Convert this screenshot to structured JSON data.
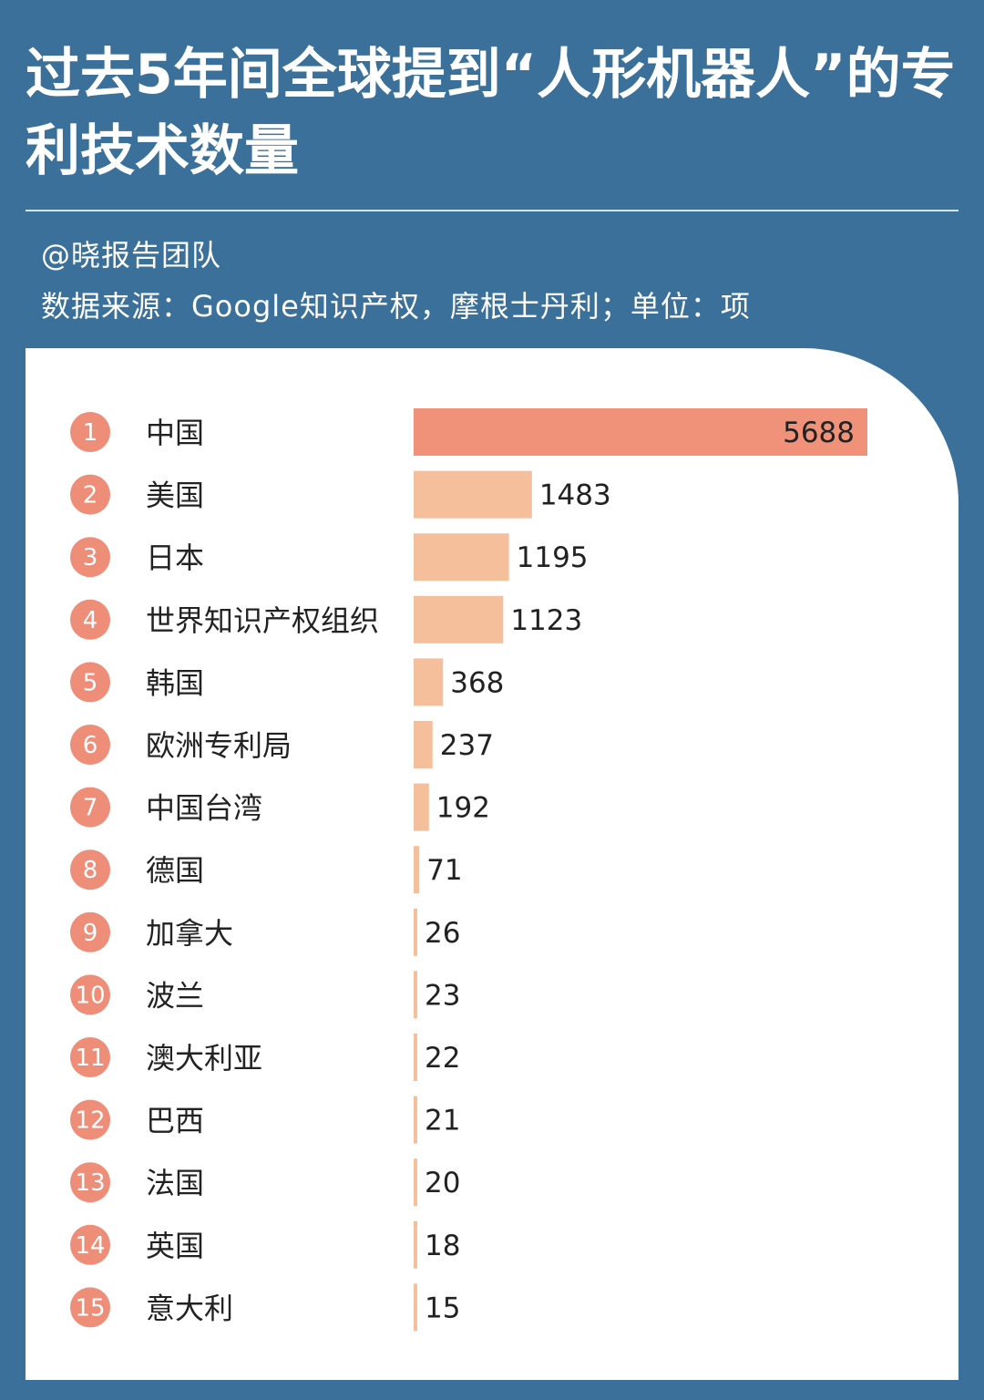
{
  "header": {
    "title": "过去5年间全球提到“人形机器人”的专利技术数量",
    "credit": "@晓报告团队",
    "source": "数据来源：Google知识产权，摩根士丹利；单位：项"
  },
  "colors": {
    "background": "#3a7099",
    "panel": "#ffffff",
    "top_bar": "#f0927a",
    "other_bars": "#f6bf9b",
    "rank_circle": "#ee8d78"
  },
  "chart_data": {
    "type": "bar",
    "orientation": "horizontal",
    "ranks": [
      "1",
      "2",
      "3",
      "4",
      "5",
      "6",
      "7",
      "8",
      "9",
      "10",
      "11",
      "12",
      "13",
      "14",
      "15"
    ],
    "categories": [
      "中国",
      "美国",
      "日本",
      "世界知识产权组织",
      "韩国",
      "欧洲专利局",
      "中国台湾",
      "德国",
      "加拿大",
      "波兰",
      "澳大利亚",
      "巴西",
      "法国",
      "英国",
      "意大利"
    ],
    "values": [
      5688,
      1483,
      1195,
      1123,
      368,
      237,
      192,
      71,
      26,
      23,
      22,
      21,
      20,
      18,
      15
    ],
    "value_labels": [
      "5688",
      "1483",
      "1195",
      "1123",
      "368",
      "237",
      "192",
      "71",
      "26",
      "23",
      "22",
      "21",
      "20",
      "18",
      "15"
    ],
    "xlim": [
      0,
      5688
    ],
    "grid": false,
    "legend": "none"
  }
}
